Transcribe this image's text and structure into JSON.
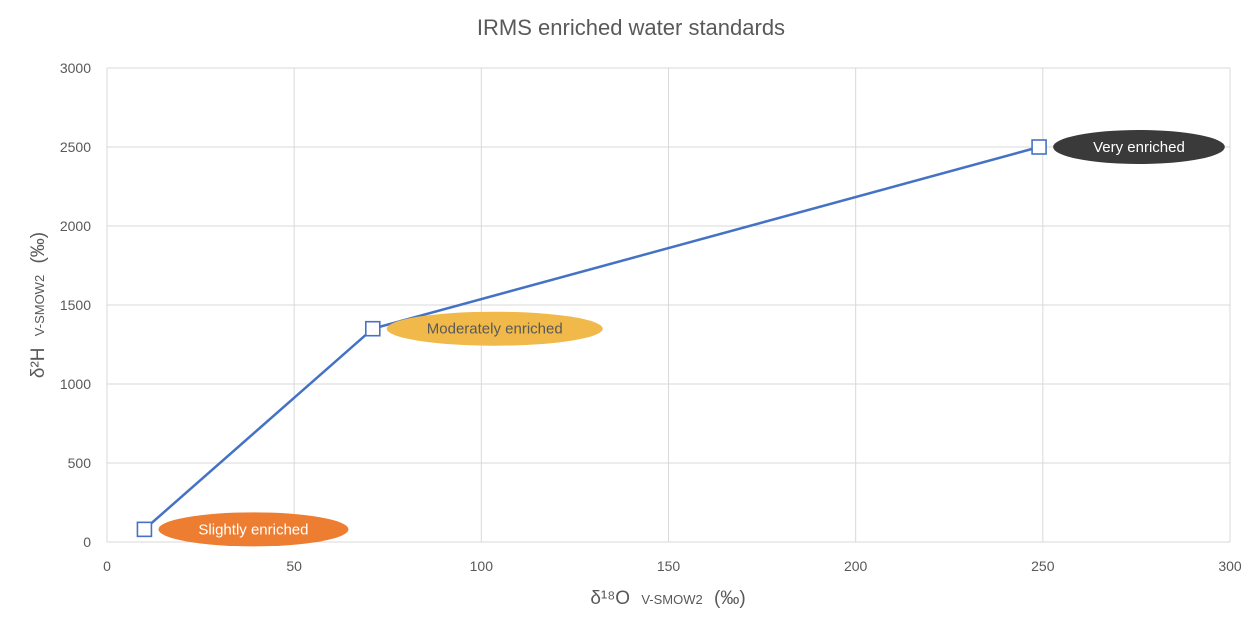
{
  "chart_data": {
    "type": "scatter",
    "title": "IRMS enriched water standards",
    "xlabel": {
      "main": "δ¹⁸O",
      "sub": "V-SMOW2",
      "unit": "(‰)"
    },
    "ylabel": {
      "main": "δ²H",
      "sub": "V-SMOW2",
      "unit": "(‰)"
    },
    "xlim": [
      0,
      300
    ],
    "ylim": [
      0,
      3000
    ],
    "x_ticks": [
      0,
      50,
      100,
      150,
      200,
      250,
      300
    ],
    "y_ticks": [
      0,
      500,
      1000,
      1500,
      2000,
      2500,
      3000
    ],
    "grid": true,
    "line_color": "#4472c4",
    "series": [
      {
        "points": [
          {
            "x": 10,
            "y": 80
          },
          {
            "x": 71,
            "y": 1350
          },
          {
            "x": 249,
            "y": 2500
          }
        ]
      }
    ],
    "annotations": [
      {
        "text": "Slightly enriched",
        "x": 10,
        "y": 80,
        "color": "#ed7d31",
        "text_color": "#ffffff"
      },
      {
        "text": "Moderately enriched",
        "x": 71,
        "y": 1350,
        "color": "#f0b94a",
        "text_color": "#595959"
      },
      {
        "text": "Very enriched",
        "x": 249,
        "y": 2500,
        "color": "#3a3a3a",
        "text_color": "#ffffff"
      }
    ]
  }
}
